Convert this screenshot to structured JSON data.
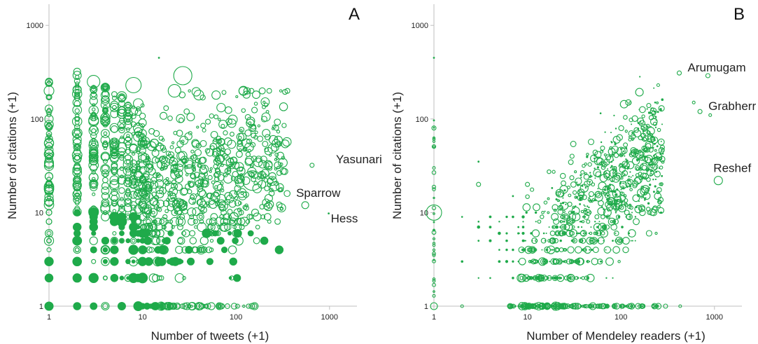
{
  "chart_data": [
    {
      "type": "scatter",
      "panel_label": "A",
      "xlabel": "Number of  tweets (+1)",
      "ylabel": "Number of citations (+1)",
      "xscale": "log",
      "yscale": "log",
      "xlim": [
        1,
        2500
      ],
      "ylim": [
        1,
        3000
      ],
      "xticks": [
        "1",
        "10",
        "100",
        "1000"
      ],
      "yticks": [
        "1",
        "10",
        "100",
        "1000"
      ],
      "color": "#1faa4a",
      "grid": false,
      "annotations": [
        {
          "text": "Yasunari",
          "x": 650,
          "y": 32
        },
        {
          "text": "Sparrow",
          "x": 550,
          "y": 12
        },
        {
          "text": "Hess",
          "x": 980,
          "y": 9.8
        }
      ],
      "points": [
        {
          "x": 1,
          "y": 1,
          "s": 6
        },
        {
          "x": 1,
          "y": 2,
          "s": 3
        },
        {
          "x": 1,
          "y": 3,
          "s": 3
        },
        {
          "x": 1,
          "y": 4,
          "s": 3
        },
        {
          "x": 1,
          "y": 5,
          "s": 3
        },
        {
          "x": 1,
          "y": 6,
          "s": 3
        },
        {
          "x": 1,
          "y": 8,
          "s": 4
        },
        {
          "x": 1,
          "y": 10,
          "s": 4
        },
        {
          "x": 1,
          "y": 20,
          "s": 5
        },
        {
          "x": 1,
          "y": 40,
          "s": 5
        },
        {
          "x": 1,
          "y": 100,
          "s": 6
        },
        {
          "x": 1,
          "y": 200,
          "s": 7
        },
        {
          "x": 1,
          "y": 250,
          "s": 5
        },
        {
          "x": 2,
          "y": 1,
          "s": 4
        },
        {
          "x": 2,
          "y": 2,
          "s": 3
        },
        {
          "x": 2,
          "y": 3,
          "s": 3
        },
        {
          "x": 2,
          "y": 4,
          "s": 3
        },
        {
          "x": 2,
          "y": 6,
          "s": 4
        },
        {
          "x": 2,
          "y": 10,
          "s": 4
        },
        {
          "x": 2,
          "y": 20,
          "s": 5
        },
        {
          "x": 2,
          "y": 60,
          "s": 6
        },
        {
          "x": 2,
          "y": 150,
          "s": 6
        },
        {
          "x": 2,
          "y": 320,
          "s": 5
        },
        {
          "x": 3,
          "y": 1,
          "s": 4
        },
        {
          "x": 3,
          "y": 3,
          "s": 3
        },
        {
          "x": 3,
          "y": 8,
          "s": 4
        },
        {
          "x": 3,
          "y": 30,
          "s": 5
        },
        {
          "x": 3,
          "y": 250,
          "s": 9
        },
        {
          "x": 4,
          "y": 2,
          "s": 3
        },
        {
          "x": 4,
          "y": 15,
          "s": 5
        },
        {
          "x": 4,
          "y": 180,
          "s": 6
        },
        {
          "x": 8,
          "y": 230,
          "s": 11
        },
        {
          "x": 10,
          "y": 1,
          "s": 4
        },
        {
          "x": 10,
          "y": 40,
          "s": 6
        },
        {
          "x": 15,
          "y": 450,
          "s": 1
        },
        {
          "x": 20,
          "y": 1,
          "s": 3
        },
        {
          "x": 22,
          "y": 200,
          "s": 9
        },
        {
          "x": 27,
          "y": 290,
          "s": 13
        },
        {
          "x": 40,
          "y": 180,
          "s": 7
        },
        {
          "x": 30,
          "y": 1,
          "s": 5
        },
        {
          "x": 50,
          "y": 1,
          "s": 4
        },
        {
          "x": 70,
          "y": 1,
          "s": 4
        },
        {
          "x": 90,
          "y": 2,
          "s": 3
        },
        {
          "x": 90,
          "y": 90,
          "s": 6
        },
        {
          "x": 100,
          "y": 6,
          "s": 5
        },
        {
          "x": 150,
          "y": 22,
          "s": 14
        },
        {
          "x": 150,
          "y": 80,
          "s": 5
        },
        {
          "x": 160,
          "y": 10,
          "s": 5
        },
        {
          "x": 250,
          "y": 60,
          "s": 6
        },
        {
          "x": 280,
          "y": 32,
          "s": 5
        },
        {
          "x": 550,
          "y": 12,
          "s": 5
        },
        {
          "x": 650,
          "y": 32,
          "s": 3
        },
        {
          "x": 980,
          "y": 9.8,
          "s": 1
        }
      ]
    },
    {
      "type": "scatter",
      "panel_label": "B",
      "xlabel": "Number of  Mendeley readers (+1)",
      "ylabel": "Number of citations (+1)",
      "xscale": "log",
      "yscale": "log",
      "xlim": [
        1,
        2500
      ],
      "ylim": [
        1,
        3000
      ],
      "xticks": [
        "1",
        "10",
        "100",
        "1000"
      ],
      "yticks": [
        "1",
        "10",
        "100",
        "1000"
      ],
      "color": "#1faa4a",
      "grid": false,
      "annotations": [
        {
          "text": "Arumugam",
          "x": 420,
          "y": 310
        },
        {
          "text": "Grabherr",
          "x": 700,
          "y": 120
        },
        {
          "text": "Reshef",
          "x": 1100,
          "y": 22
        }
      ],
      "points": [
        {
          "x": 1,
          "y": 1,
          "s": 5
        },
        {
          "x": 1,
          "y": 10,
          "s": 11
        },
        {
          "x": 1,
          "y": 450,
          "s": 1
        },
        {
          "x": 1,
          "y": 80,
          "s": 3
        },
        {
          "x": 1,
          "y": 30,
          "s": 2
        },
        {
          "x": 2,
          "y": 1,
          "s": 2
        },
        {
          "x": 3,
          "y": 20,
          "s": 3
        },
        {
          "x": 3,
          "y": 35,
          "s": 1
        },
        {
          "x": 7,
          "y": 15,
          "s": 1
        },
        {
          "x": 10,
          "y": 1,
          "s": 4
        },
        {
          "x": 10,
          "y": 20,
          "s": 3
        },
        {
          "x": 20,
          "y": 1,
          "s": 6
        },
        {
          "x": 30,
          "y": 40,
          "s": 3
        },
        {
          "x": 50,
          "y": 1,
          "s": 5
        },
        {
          "x": 60,
          "y": 35,
          "s": 5
        },
        {
          "x": 80,
          "y": 8,
          "s": 5
        },
        {
          "x": 90,
          "y": 60,
          "s": 5
        },
        {
          "x": 100,
          "y": 45,
          "s": 6
        },
        {
          "x": 120,
          "y": 150,
          "s": 4
        },
        {
          "x": 150,
          "y": 70,
          "s": 5
        },
        {
          "x": 200,
          "y": 6,
          "s": 4
        },
        {
          "x": 250,
          "y": 230,
          "s": 2
        },
        {
          "x": 300,
          "y": 1,
          "s": 3
        },
        {
          "x": 420,
          "y": 310,
          "s": 3
        },
        {
          "x": 430,
          "y": 1,
          "s": 2
        },
        {
          "x": 600,
          "y": 150,
          "s": 2
        },
        {
          "x": 700,
          "y": 120,
          "s": 3
        },
        {
          "x": 1100,
          "y": 22,
          "s": 6
        },
        {
          "x": 850,
          "y": 290,
          "s": 3
        },
        {
          "x": 900,
          "y": 110,
          "s": 2
        }
      ]
    }
  ]
}
